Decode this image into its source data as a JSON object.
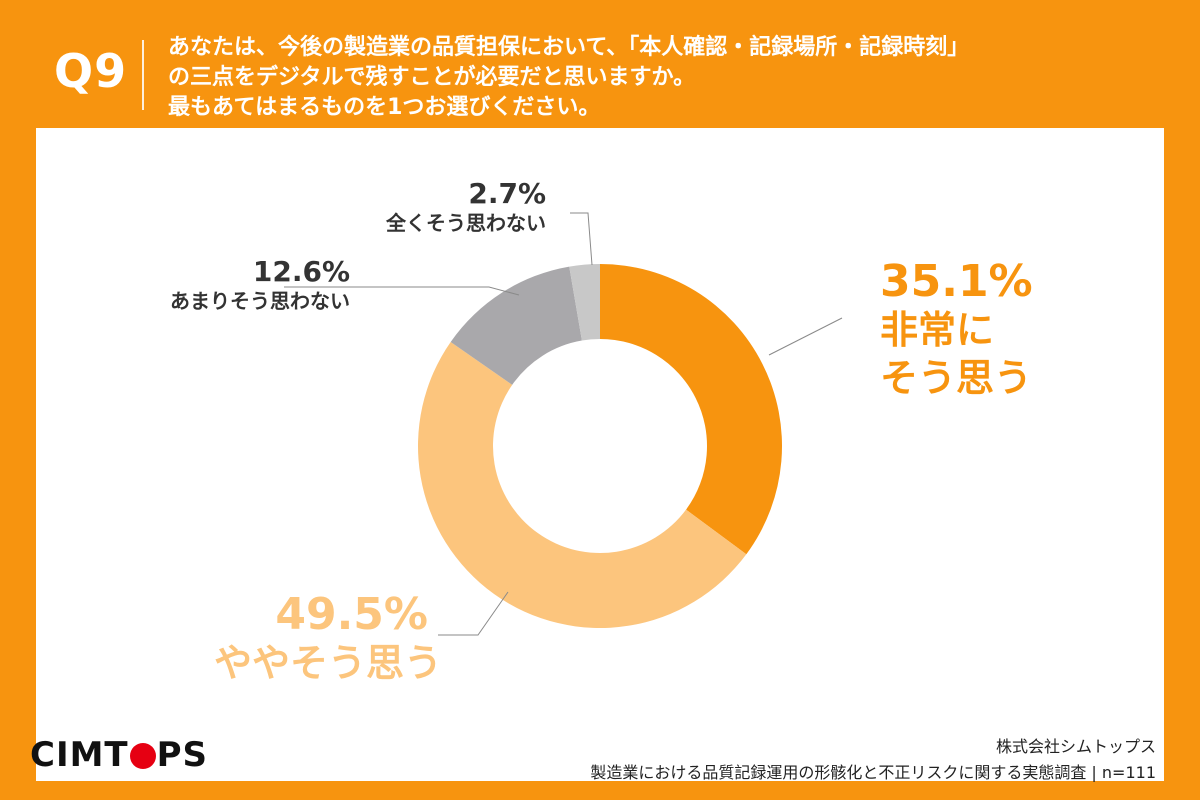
{
  "question": {
    "number": "Q9",
    "lines": [
      "あなたは、今後の製造業の品質担保において、「本人確認・記録場所・記録時刻」",
      "の三点をデジタルで残すことが必要だと思いますか。",
      "最もあてはまるものを1つお選びください。"
    ]
  },
  "chart_data": {
    "type": "pie",
    "donut": true,
    "unit": "%",
    "start_angle_deg": 0,
    "direction": "clockwise",
    "slices": [
      {
        "label": "非常にそう思う",
        "label_lines": [
          "非常に",
          "そう思う"
        ],
        "value": 35.1,
        "value_label": "35.1%",
        "color": "#f7940f"
      },
      {
        "label": "ややそう思う",
        "label_lines": [
          "ややそう思う"
        ],
        "value": 49.5,
        "value_label": "49.5%",
        "color": "#fcc57d"
      },
      {
        "label": "あまりそう思わない",
        "label_lines": [
          "あまりそう思わない"
        ],
        "value": 12.6,
        "value_label": "12.6%",
        "color": "#a9a8ab"
      },
      {
        "label": "全くそう思わない",
        "label_lines": [
          "全くそう思わない"
        ],
        "value": 2.7,
        "value_label": "2.7%",
        "color": "#c8c8c8"
      }
    ]
  },
  "footer": {
    "logo": "CIMTOPS",
    "company": "株式会社シムトップス",
    "survey": "製造業における品質記録運用の形骸化と不正リスクに関する実態調査 | n=111"
  }
}
